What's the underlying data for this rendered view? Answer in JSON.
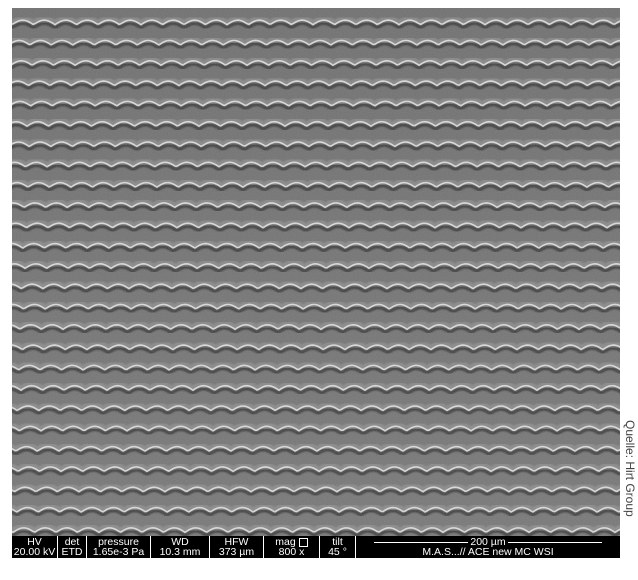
{
  "info_bar": {
    "cells": [
      {
        "header": "HV",
        "value": "20.00 kV"
      },
      {
        "header": "det",
        "value": "ETD"
      },
      {
        "header": "pressure",
        "value": "1.65e-3 Pa"
      },
      {
        "header": "WD",
        "value": "10.3 mm"
      },
      {
        "header": "HFW",
        "value": "373 µm"
      },
      {
        "header": "mag",
        "value": "800 x"
      },
      {
        "header": "tilt",
        "value": "45 °"
      }
    ],
    "scale_bar_label": "200 µm",
    "operator_label": "M.A.S...// ACE new MC WSI"
  },
  "credit": "Quelle: Hirt Group",
  "image": {
    "description_colors": {
      "surface": "#7a7a7a",
      "highlight": "#e6e6e6",
      "shadow": "#2e2e2e"
    },
    "ridge_rows_visible": 26
  }
}
